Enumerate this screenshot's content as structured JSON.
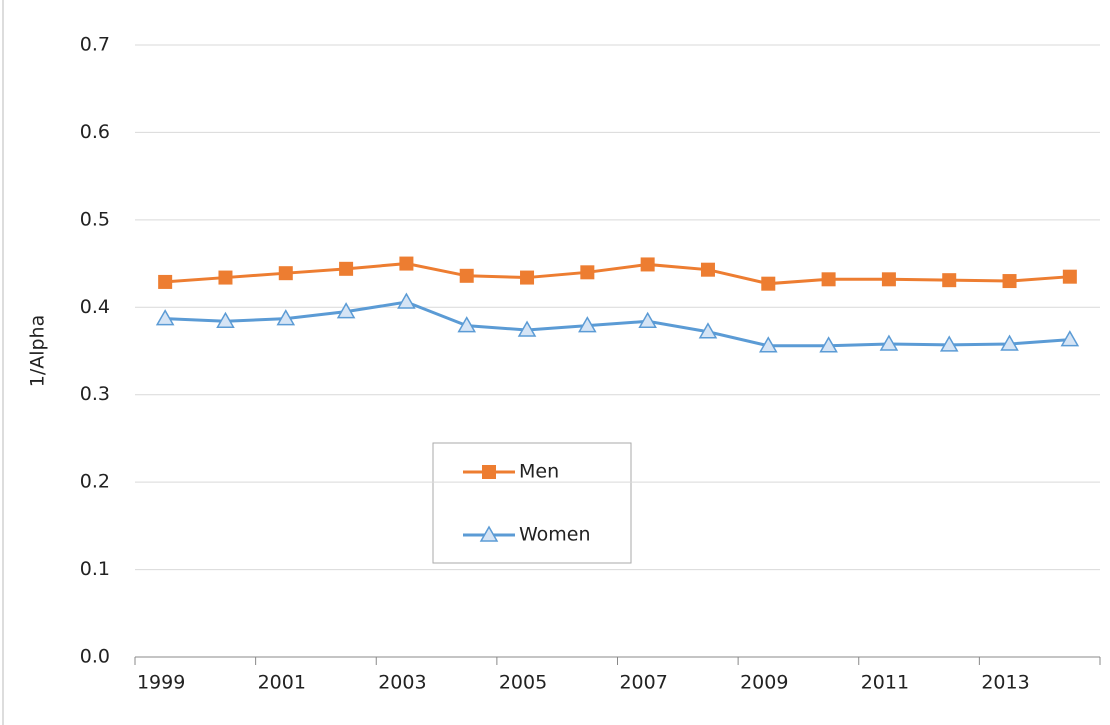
{
  "chart_data": {
    "type": "line",
    "y_label": "1/Alpha",
    "categories": [
      "1999",
      null,
      "2001",
      null,
      "2003",
      null,
      "2005",
      null,
      "2007",
      null,
      "2009",
      null,
      "2011",
      null,
      "2013",
      null
    ],
    "series": [
      {
        "name": "Men",
        "color": "#ed7d31",
        "marker": "square",
        "values": [
          0.429,
          0.434,
          0.439,
          0.444,
          0.45,
          0.436,
          0.434,
          0.44,
          0.449,
          0.443,
          0.427,
          0.432,
          0.432,
          0.431,
          0.43,
          0.435
        ]
      },
      {
        "name": "Women",
        "color": "#5b9bd5",
        "marker": "triangle",
        "values": [
          0.387,
          0.384,
          0.387,
          0.395,
          0.406,
          0.379,
          0.374,
          0.379,
          0.384,
          0.372,
          0.356,
          0.356,
          0.358,
          0.357,
          0.358,
          0.363
        ]
      }
    ],
    "ylim": [
      0,
      0.7
    ],
    "yticks": [
      {
        "value": 0,
        "label": "0.0"
      },
      0.1,
      0.2,
      0.3,
      0.4,
      0.5,
      0.6,
      0.7
    ],
    "grid": true
  }
}
